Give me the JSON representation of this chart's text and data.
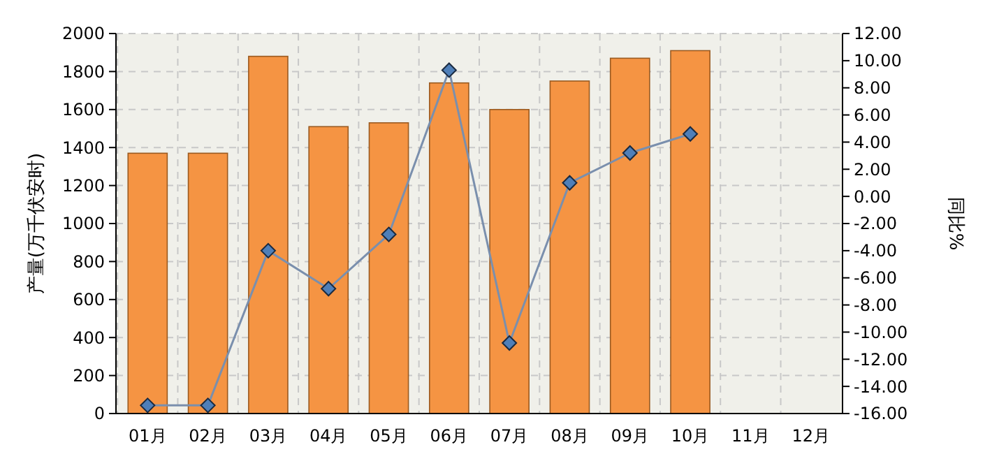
{
  "chart_data": {
    "type": "bar",
    "ylabel": "产量(万千伏安时)",
    "y2label": "同比%",
    "categories": [
      "01月",
      "02月",
      "03月",
      "04月",
      "05月",
      "06月",
      "07月",
      "08月",
      "09月",
      "10月",
      "11月",
      "12月"
    ],
    "series": [
      {
        "color": "#f59443",
        "values": [
          1370,
          1370,
          1880,
          1510,
          1530,
          1740,
          1600,
          1750,
          1870,
          1910,
          null,
          null
        ]
      },
      {
        "type": "line",
        "axis": "y2",
        "color": "#7a8fad",
        "marker": "diamond",
        "values": [
          -15.4,
          -15.4,
          -4.0,
          -6.8,
          -2.8,
          9.3,
          -10.8,
          1.0,
          3.2,
          4.6,
          null,
          null
        ]
      }
    ],
    "ylim": [
      0,
      2000
    ],
    "yticks": [
      0,
      200,
      400,
      600,
      800,
      1000,
      1200,
      1400,
      1600,
      1800,
      2000
    ],
    "y2lim": [
      -16,
      12
    ],
    "y2ticks": [
      {
        "value": -16,
        "label": "-16.00"
      },
      {
        "value": -14,
        "label": "-14.00"
      },
      {
        "value": -12,
        "label": "-12.00"
      },
      {
        "value": -10,
        "label": "-10.00"
      },
      {
        "value": -8,
        "label": "-8.00"
      },
      {
        "value": -6,
        "label": "-6.00"
      },
      {
        "value": -4,
        "label": "-4.00"
      },
      {
        "value": -2,
        "label": "-2.00"
      },
      {
        "value": 0,
        "label": "0.00"
      },
      {
        "value": 2,
        "label": "2.00"
      },
      {
        "value": 4,
        "label": "4.00"
      },
      {
        "value": 6,
        "label": "6.00"
      },
      {
        "value": 8,
        "label": "8.00"
      },
      {
        "value": 10,
        "label": "10.00"
      },
      {
        "value": 12,
        "label": "12.00"
      }
    ],
    "grid": true,
    "line_style": "solid"
  }
}
